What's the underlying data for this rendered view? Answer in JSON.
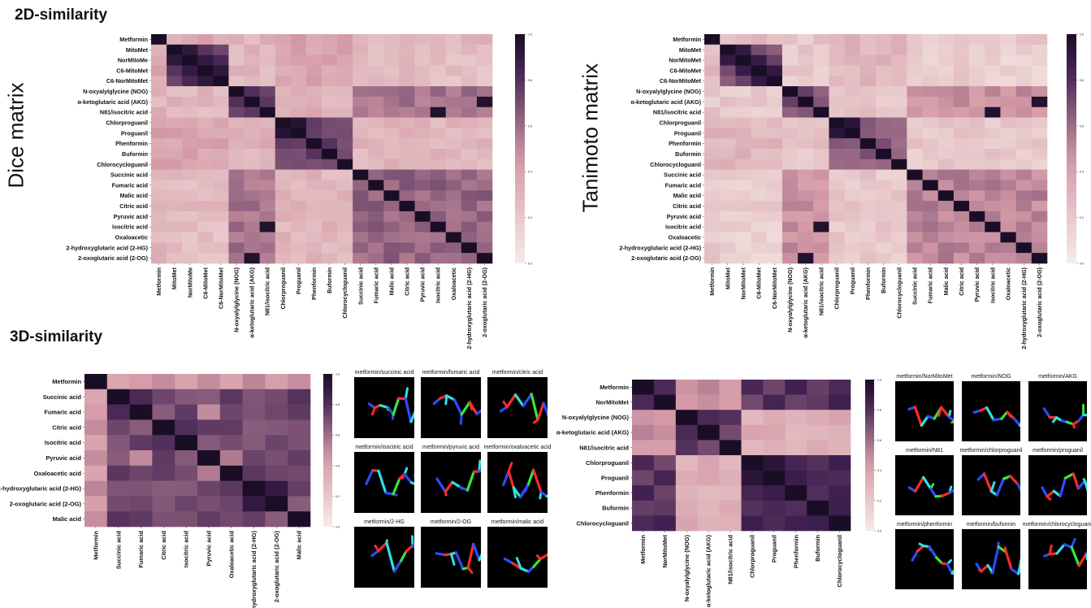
{
  "titles": {
    "sec2d": "2D-similarity",
    "sec3d": "3D-similarity",
    "dice": "Dice matrix",
    "tanimoto": "Tanimoto matrix"
  },
  "colors": {
    "low": "#f6ece7",
    "mid": "#d59aa7",
    "high": "#3f2050",
    "max": "#1a0e26",
    "stick_carbon": "#39e639",
    "stick_nitrogen": "#2d4cff",
    "stick_oxygen": "#ff2a2a",
    "stick_h": "#33e0e0"
  },
  "chart_data": [
    {
      "id": "dice",
      "type": "heatmap",
      "title": "",
      "ylabel": "Dice matrix",
      "labels": [
        "Metformin",
        "MitoMet",
        "NorMitoMe",
        "C6-MitoMet",
        "C6-NorMitoMet",
        "N-oxyalylglycine (NOG)",
        "α-ketoglutaric acid (AKG)",
        "N81/isocitric acid",
        "Chlorproguanil",
        "Proguanil",
        "Phenformin",
        "Buformin",
        "Chlorocycloguanil",
        "Succinic acid",
        "Fumaric acid",
        "Malic acid",
        "Citric acid",
        "Pyruvic acid",
        "Isocitric acid",
        "Oxaloacetic",
        "2-hydroxyglutaric acid (2-HG)",
        "2-oxoglutaric acid (2-OG)"
      ],
      "colorbar_ticks": [
        "1.0",
        "0.8",
        "0.6",
        "0.4",
        "0.2",
        "0.0"
      ],
      "vlim": [
        0,
        1
      ],
      "groups": [
        [
          0,
          1
        ],
        [
          1,
          5
        ],
        [
          5,
          8
        ],
        [
          8,
          13
        ],
        [
          13,
          22
        ]
      ],
      "block_values": [
        [
          0.4,
          0.38,
          0.3,
          0.42,
          0.3
        ],
        [
          0.38,
          0.78,
          0.3,
          0.38,
          0.26
        ],
        [
          0.3,
          0.3,
          0.72,
          0.32,
          0.58
        ],
        [
          0.42,
          0.38,
          0.32,
          0.75,
          0.3
        ],
        [
          0.3,
          0.26,
          0.58,
          0.3,
          0.62
        ]
      ],
      "specials": [
        [
          1,
          2,
          0.92
        ],
        [
          2,
          3,
          0.9
        ],
        [
          3,
          4,
          0.92
        ],
        [
          8,
          9,
          0.95
        ],
        [
          6,
          21,
          0.97
        ],
        [
          7,
          18,
          0.97
        ],
        [
          5,
          6,
          0.8
        ]
      ]
    },
    {
      "id": "tanimoto",
      "type": "heatmap",
      "title": "",
      "ylabel": "Tanimoto matrix",
      "labels": [
        "Metformin",
        "MitoMet",
        "NorMitoMet",
        "C6-MitoMet",
        "C6-NorMitoMet",
        "N-oxyalylglycine (NOG)",
        "α-ketoglutaric acid (AKG)",
        "N81/isocitric acid",
        "Chlorproguanil",
        "Proguanil",
        "Phenformin",
        "Buformin",
        "Chlorocycloguanil",
        "Succinic acid",
        "Fumaric acid",
        "Malic acid",
        "Citric acid",
        "Pyruvic acid",
        "Isocitric acid",
        "Oxaloacetic",
        "2-hydroxyglutaric acid (2-HG)",
        "2-oxoglutaric acid (2-OG)"
      ],
      "colorbar_ticks": [
        "1.0",
        "0.8",
        "0.6",
        "0.4",
        "0.2",
        "0.0"
      ],
      "vlim": [
        0,
        1
      ],
      "groups": [
        [
          0,
          1
        ],
        [
          1,
          5
        ],
        [
          5,
          8
        ],
        [
          8,
          13
        ],
        [
          13,
          22
        ]
      ],
      "block_values": [
        [
          0.3,
          0.28,
          0.2,
          0.32,
          0.2
        ],
        [
          0.28,
          0.7,
          0.2,
          0.28,
          0.16
        ],
        [
          0.2,
          0.2,
          0.62,
          0.22,
          0.48
        ],
        [
          0.32,
          0.28,
          0.22,
          0.66,
          0.2
        ],
        [
          0.2,
          0.16,
          0.48,
          0.2,
          0.52
        ]
      ],
      "specials": [
        [
          1,
          2,
          0.9
        ],
        [
          2,
          3,
          0.88
        ],
        [
          3,
          4,
          0.9
        ],
        [
          8,
          9,
          0.93
        ],
        [
          6,
          21,
          0.97
        ],
        [
          7,
          18,
          0.97
        ],
        [
          5,
          6,
          0.75
        ]
      ]
    },
    {
      "id": "3d-acids",
      "type": "heatmap",
      "title": "",
      "labels": [
        "Metformin",
        "Succinic acid",
        "Fumaric acid",
        "Citric acid",
        "Isocitric acid",
        "Pyruvic acid",
        "Oxaloacetic acid",
        "2-hydroxyglutaric acid (2-HG)",
        "2-oxoglutaric acid (2-OG)",
        "Malic acid"
      ],
      "colorbar_ticks": [
        "1.0",
        "0.8",
        "0.6",
        "0.4",
        "0.2",
        "0.0"
      ],
      "vlim": [
        0,
        1
      ],
      "groups": [
        [
          0,
          1
        ],
        [
          1,
          10
        ]
      ],
      "block_values": [
        [
          0.95,
          0.45
        ],
        [
          0.45,
          0.72
        ]
      ],
      "specials": [
        [
          1,
          2,
          0.82
        ],
        [
          7,
          8,
          0.9
        ],
        [
          3,
          4,
          0.8
        ],
        [
          5,
          6,
          0.55
        ],
        [
          2,
          5,
          0.5
        ]
      ]
    },
    {
      "id": "3d-metformin",
      "type": "heatmap",
      "title": "",
      "labels": [
        "Metformin",
        "NorMitoMet",
        "N-oxyalylglycine (NOG)",
        "α-ketoglutaric acid (AKG)",
        "N81/isocitric acid",
        "Chlorproguanil",
        "Proguanil",
        "Phenformin",
        "Buformin",
        "Chlorocycloguanil"
      ],
      "colorbar_ticks": [
        "1.0",
        "0.8",
        "0.6",
        "0.4",
        "0.2",
        "0.0"
      ],
      "vlim": [
        0,
        1
      ],
      "groups": [
        [
          0,
          2
        ],
        [
          2,
          5
        ],
        [
          5,
          10
        ]
      ],
      "block_values": [
        [
          0.88,
          0.48,
          0.78
        ],
        [
          0.48,
          0.75,
          0.35
        ],
        [
          0.78,
          0.35,
          0.82
        ]
      ],
      "specials": [
        [
          2,
          3,
          0.82
        ],
        [
          5,
          6,
          0.93
        ],
        [
          8,
          9,
          0.86
        ]
      ]
    }
  ],
  "overlays": {
    "acids": [
      "metformin/succinic acid",
      "metformin/fumaric acid",
      "metformin/citric acid",
      "metformin/isocitric acid",
      "metformin/pyruvic acid",
      "metformin/oxaloacetic acid",
      "metformin/2-HG",
      "metformin/2-OG",
      "metformin/malic acid"
    ],
    "others": [
      "metformin/NorMitoMet",
      "metformin/NOG",
      "metformin/AKG",
      "metformin/N81",
      "metformin/chlorproguanil",
      "metformin/proguanil",
      "metformin/phenformin",
      "metformin/buformin",
      "metformin/chlorocycloguanil"
    ]
  }
}
